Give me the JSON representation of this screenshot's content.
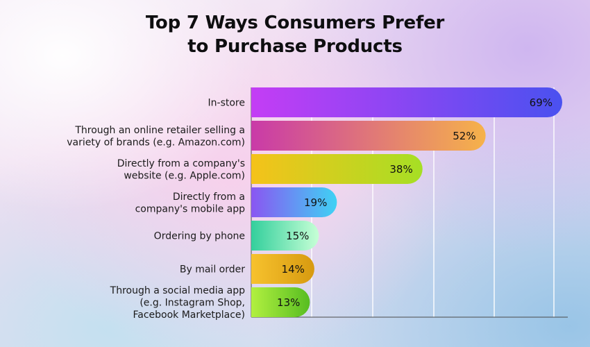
{
  "chart_data": {
    "type": "bar",
    "orientation": "horizontal",
    "title": [
      "Top 7 Ways Consumers Prefer",
      "to Purchase Products"
    ],
    "xlabel": "",
    "ylabel": "",
    "xlim": [
      0,
      69
    ],
    "grid": true,
    "legend": "none",
    "categories": [
      [
        "In-store"
      ],
      [
        "Through an online retailer selling a",
        "variety of brands (e.g. Amazon.com)"
      ],
      [
        "Directly from a company's",
        "website (e.g. Apple.com)"
      ],
      [
        "Directly from a",
        "company's mobile app"
      ],
      [
        "Ordering by phone"
      ],
      [
        "By mail order"
      ],
      [
        "Through a social media app",
        "(e.g. Instagram Shop,",
        "Facebook Marketplace)"
      ]
    ],
    "values": [
      69,
      52,
      38,
      19,
      15,
      14,
      13
    ],
    "value_labels": [
      "69%",
      "52%",
      "38%",
      "19%",
      "15%",
      "14%",
      "13%"
    ],
    "bar_gradients": [
      [
        "#c43df5",
        "#4a51f0"
      ],
      [
        "#c93aa8",
        "#f6b24a"
      ],
      [
        "#f5c21a",
        "#a6df24"
      ],
      [
        "#8a56f2",
        "#3fd2f4"
      ],
      [
        "#33cf9c",
        "#c7ffd6"
      ],
      [
        "#f7c22e",
        "#d79a10"
      ],
      [
        "#b2f040",
        "#57bd21"
      ]
    ],
    "gridline_color": "#ffffff",
    "axis_color": "#4a4a4a"
  }
}
